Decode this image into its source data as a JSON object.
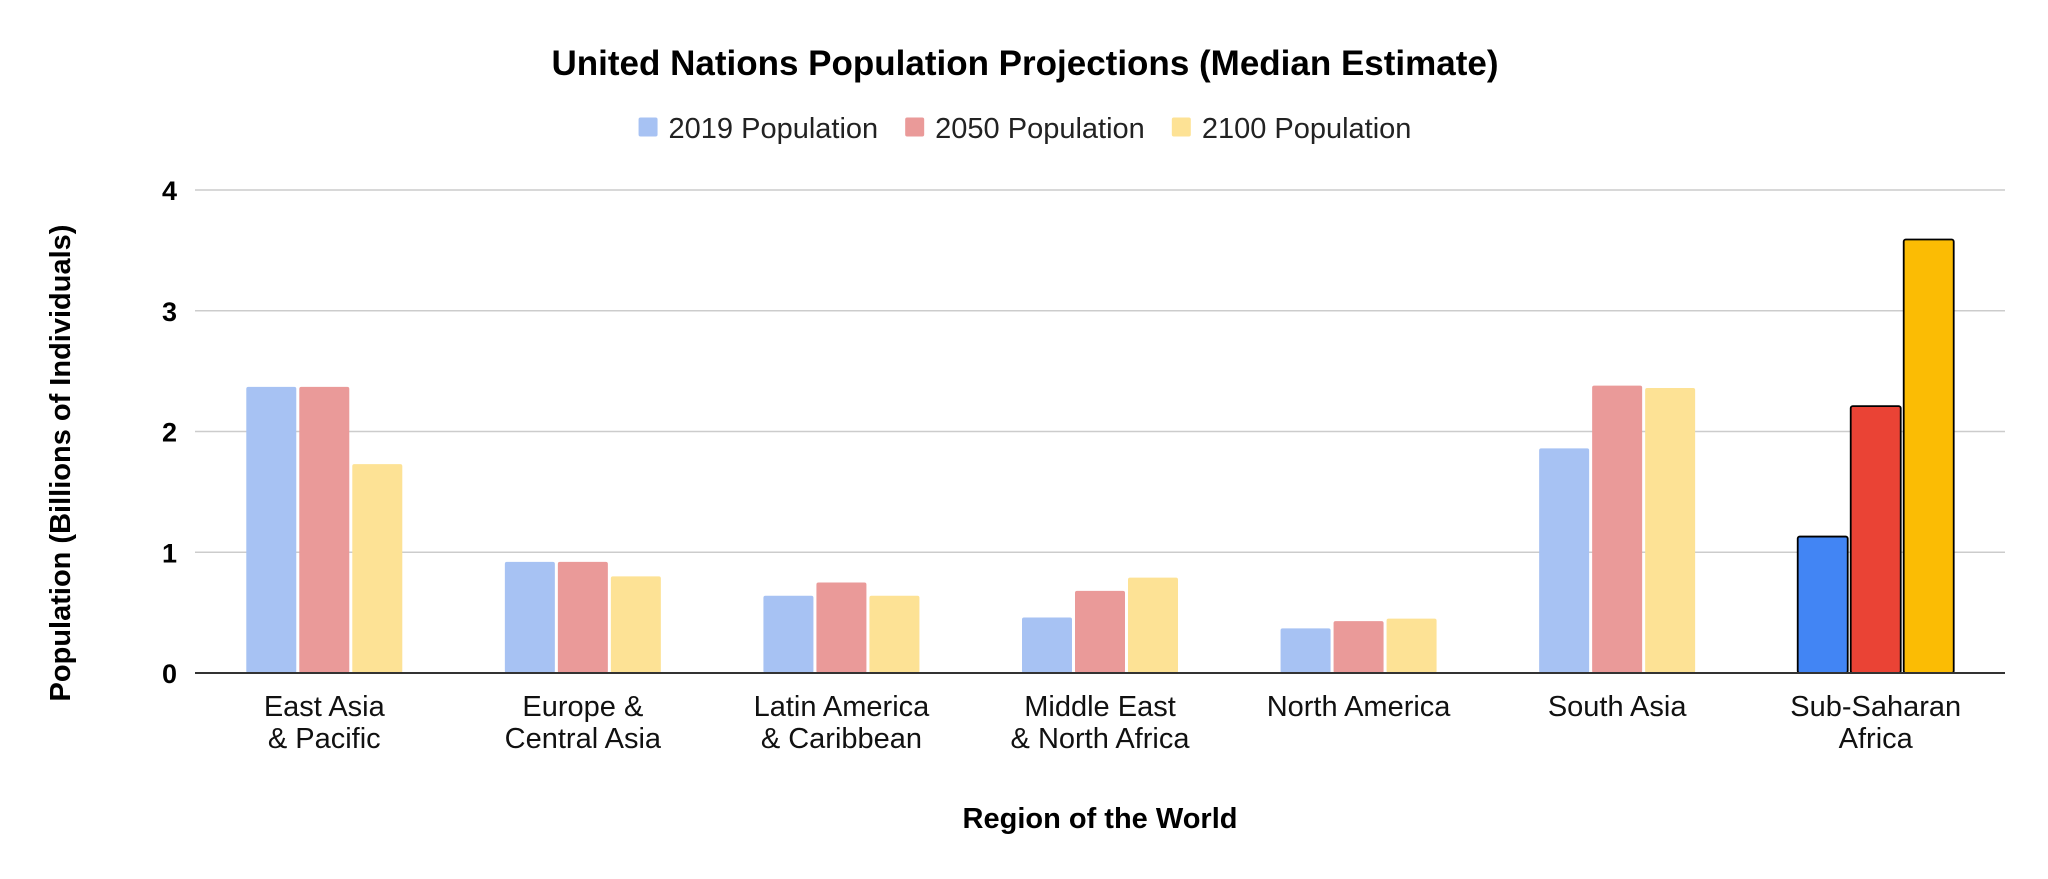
{
  "chart_data": {
    "type": "bar",
    "title": "United Nations Population Projections (Median Estimate)",
    "xlabel": "Region of the World",
    "ylabel": "Population (Billions of Individuals)",
    "ylim": [
      0,
      4
    ],
    "yticks": [
      0,
      1,
      2,
      3,
      4
    ],
    "grid": true,
    "legend_position": "top",
    "categories": [
      [
        "East Asia",
        "& Pacific"
      ],
      [
        "Europe &",
        "Central Asia"
      ],
      [
        "Latin America",
        "& Caribbean"
      ],
      [
        "Middle East",
        "& North Africa"
      ],
      [
        "North America"
      ],
      [
        "South Asia"
      ],
      [
        "Sub-Saharan",
        "Africa"
      ]
    ],
    "series": [
      {
        "name": "2019 Population",
        "color": "#a7c2f3",
        "values": [
          2.37,
          0.92,
          0.64,
          0.46,
          0.37,
          1.86,
          1.13
        ]
      },
      {
        "name": "2050 Population",
        "color": "#ea9a99",
        "values": [
          2.37,
          0.92,
          0.75,
          0.68,
          0.43,
          2.38,
          2.21
        ]
      },
      {
        "name": "2100 Population",
        "color": "#fde295",
        "values": [
          1.73,
          0.8,
          0.64,
          0.79,
          0.45,
          2.36,
          3.59
        ]
      }
    ],
    "highlight": {
      "category_index": 6,
      "colors": [
        "#4285f4",
        "#ea4335",
        "#fbbc04"
      ],
      "outline": "#000000"
    }
  }
}
